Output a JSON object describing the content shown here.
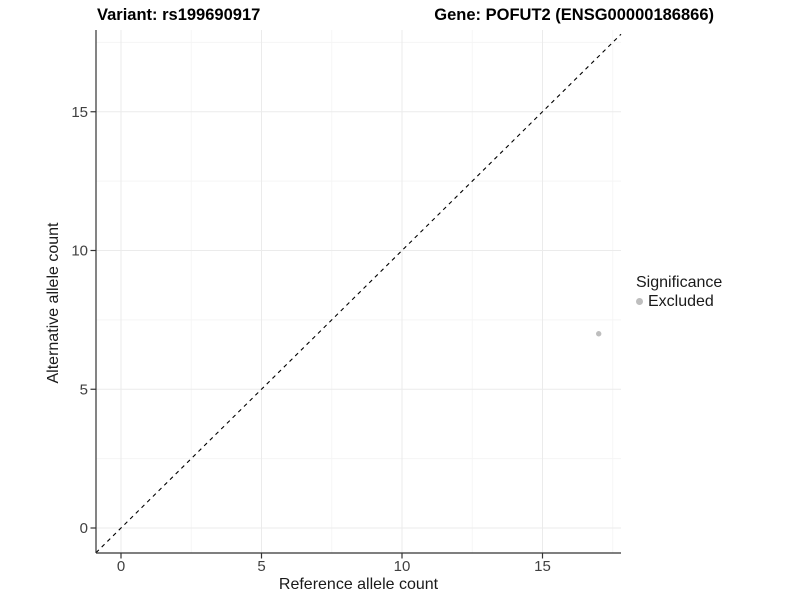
{
  "header": {
    "title_left": "Variant: rs199690917",
    "title_right": "Gene: POFUT2 (ENSG00000186866)"
  },
  "chart_data": {
    "type": "scatter",
    "xlabel": "Reference allele count",
    "ylabel": "Alternative allele count",
    "x_ticks": [
      0,
      5,
      10,
      15
    ],
    "y_ticks": [
      0,
      5,
      10,
      15
    ],
    "x_minor_gridlines": [
      2.5,
      7.5,
      12.5,
      17.5
    ],
    "y_minor_gridlines": [
      2.5,
      7.5,
      12.5,
      17.5
    ],
    "xlim": [
      -0.89,
      17.79
    ],
    "ylim": [
      -0.9,
      17.95
    ],
    "grid": "on",
    "identity_line": {
      "equation": "y = x",
      "style": "dashed",
      "color": "#000000"
    },
    "series": [
      {
        "name": "Excluded",
        "color": "#bebebe",
        "points": [
          [
            17,
            7
          ]
        ]
      }
    ],
    "legend": {
      "title": "Significance",
      "position": "right",
      "items": [
        {
          "label": "Excluded",
          "color": "#bebebe"
        }
      ]
    }
  },
  "colors": {
    "background": "#ffffff",
    "grid_major": "#ebebeb",
    "grid_minor": "#f5f5f5",
    "axis_line": "#333333",
    "tick_label": "#404040",
    "title_text": "#000000"
  }
}
